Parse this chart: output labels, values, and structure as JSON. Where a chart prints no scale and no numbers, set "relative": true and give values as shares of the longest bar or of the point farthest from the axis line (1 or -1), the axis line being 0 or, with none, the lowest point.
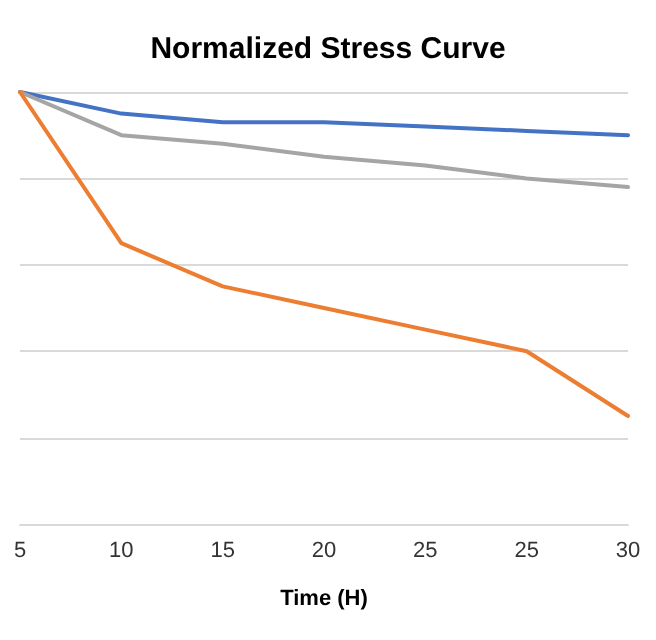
{
  "chart_data": {
    "type": "line",
    "title": "Normalized Stress Curve",
    "xlabel": "Time (H)",
    "categories": [
      "5",
      "10",
      "15",
      "20",
      "25",
      "25",
      "30"
    ],
    "relative": true,
    "grid": "y",
    "marker": "none",
    "line_style": "solid",
    "series": [
      {
        "color": "#4472c4",
        "values": [
          1,
          0.95,
          0.93,
          0.93,
          0.92,
          0.91,
          0.9
        ]
      },
      {
        "color": "#a5a5a5",
        "values": [
          1,
          0.9,
          0.88,
          0.85,
          0.83,
          0.8,
          0.78
        ]
      },
      {
        "color": "#ed7d31",
        "values": [
          1,
          0.65,
          0.55,
          0.5,
          0.45,
          0.4,
          0.25
        ]
      }
    ]
  }
}
